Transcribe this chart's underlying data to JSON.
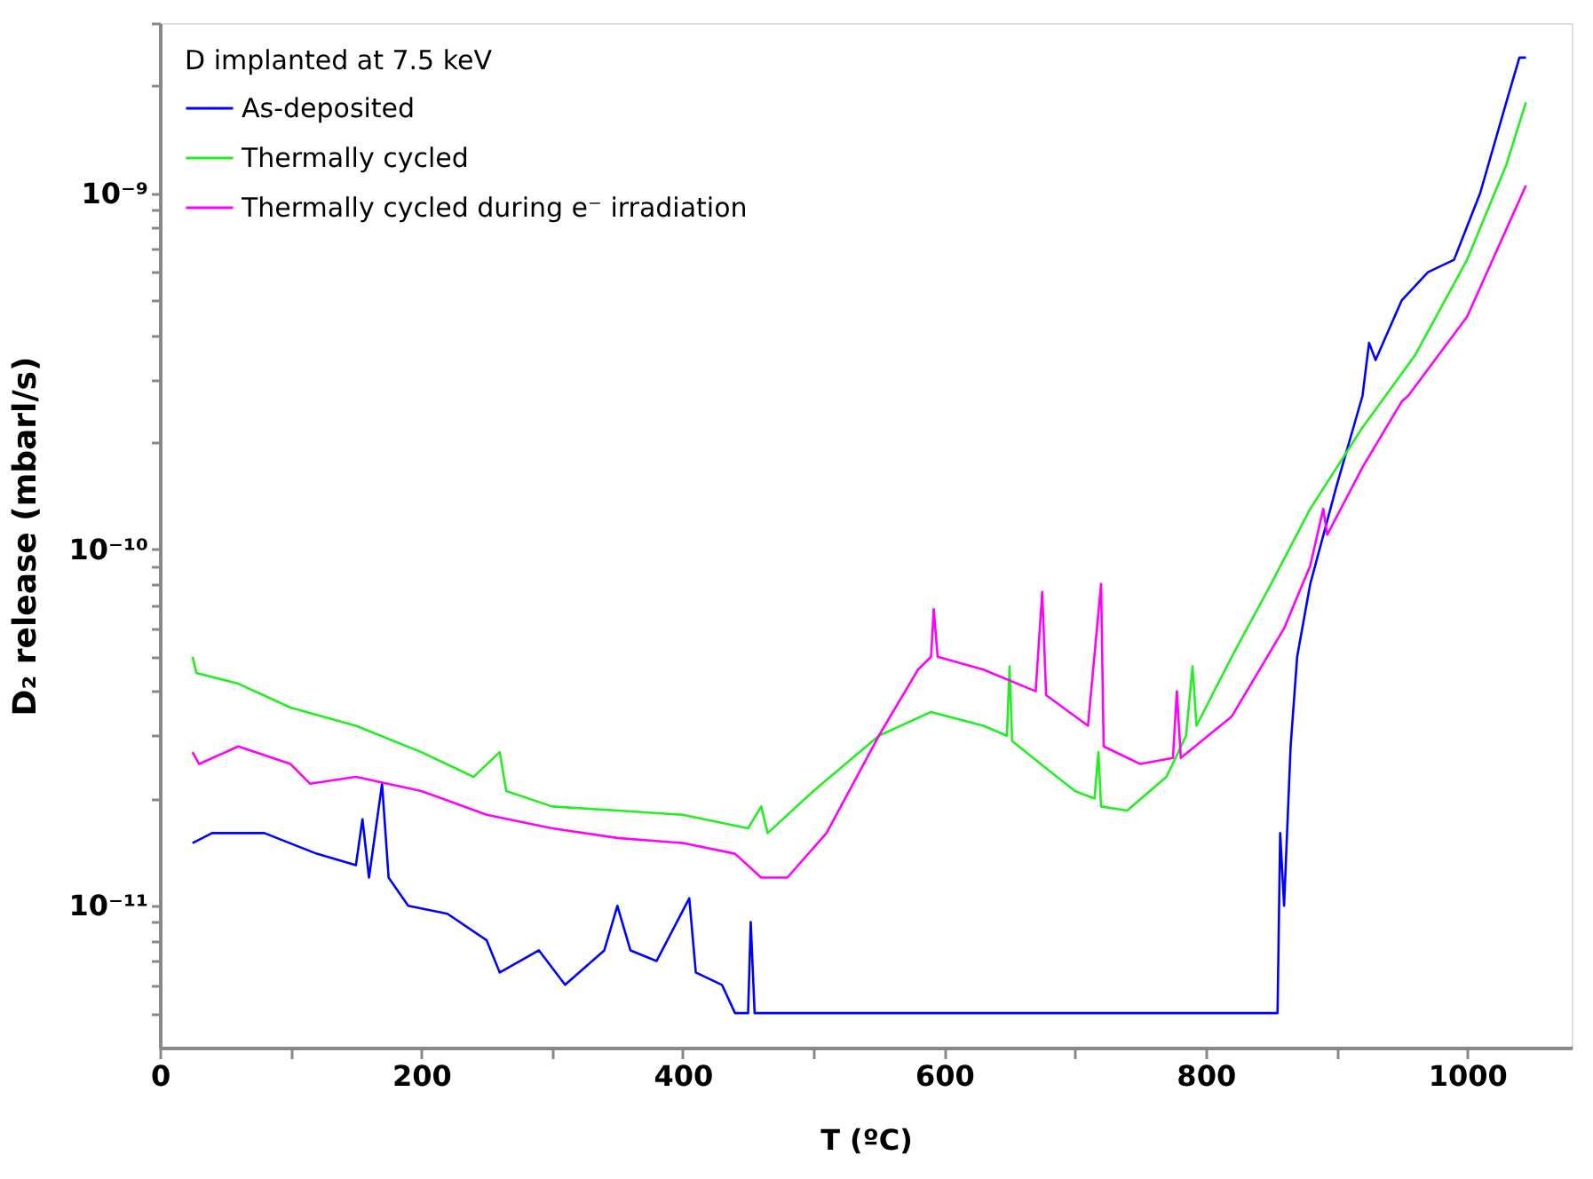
{
  "chart_data": {
    "type": "line",
    "xlabel": "T (ºC)",
    "ylabel": "D₂ release (mbarl/s)",
    "legend_title": "D implanted at 7.5 keV",
    "legend": "top left",
    "log": "y",
    "grid": false,
    "marker": "none",
    "line_style": "solid",
    "xlim": [
      0,
      1080
    ],
    "xticks": [
      0,
      {
        "value": 100,
        "label": null
      },
      200,
      {
        "value": 300,
        "label": null
      },
      400,
      {
        "value": 500,
        "label": null
      },
      600,
      {
        "value": 700,
        "label": null
      },
      800,
      {
        "value": 900,
        "label": null
      },
      1000
    ],
    "ylim": [
      4e-12,
      3e-09
    ],
    "yticks": [
      {
        "value": 5e-12,
        "label": null
      },
      {
        "value": 6e-12,
        "label": null
      },
      {
        "value": 7e-12,
        "label": null
      },
      {
        "value": 8e-12,
        "label": null
      },
      {
        "value": 9e-12,
        "label": null
      },
      {
        "value": 1e-11,
        "label": "10⁻¹¹"
      },
      {
        "value": 2e-11,
        "label": null
      },
      {
        "value": 3e-11,
        "label": null
      },
      {
        "value": 4e-11,
        "label": null
      },
      {
        "value": 5e-11,
        "label": null
      },
      {
        "value": 6e-11,
        "label": null
      },
      {
        "value": 7e-11,
        "label": null
      },
      {
        "value": 8e-11,
        "label": null
      },
      {
        "value": 9e-11,
        "label": null
      },
      {
        "value": 1e-10,
        "label": "10⁻¹⁰"
      },
      {
        "value": 2e-10,
        "label": null
      },
      {
        "value": 3e-10,
        "label": null
      },
      {
        "value": 4e-10,
        "label": null
      },
      {
        "value": 5e-10,
        "label": null
      },
      {
        "value": 6e-10,
        "label": null
      },
      {
        "value": 7e-10,
        "label": null
      },
      {
        "value": 8e-10,
        "label": null
      },
      {
        "value": 9e-10,
        "label": null
      },
      {
        "value": 1e-09,
        "label": "10⁻⁹"
      },
      {
        "value": 2e-09,
        "label": null
      },
      {
        "value": 3e-09,
        "label": null
      }
    ],
    "series": [
      {
        "name": "As-deposited",
        "color": "#0000ff",
        "x": [
          25,
          40,
          80,
          120,
          150,
          155,
          160,
          170,
          175,
          190,
          220,
          250,
          260,
          290,
          310,
          340,
          350,
          360,
          380,
          405,
          410,
          430,
          440,
          450,
          452,
          455,
          855,
          857,
          860,
          865,
          870,
          880,
          900,
          920,
          925,
          930,
          950,
          970,
          990,
          1010,
          1030,
          1040,
          1045
        ],
        "values": [
          1.5e-11,
          1.6e-11,
          1.6e-11,
          1.4e-11,
          1.3e-11,
          1.75e-11,
          1.2e-11,
          2.2e-11,
          1.2e-11,
          1e-11,
          9.5e-12,
          8e-12,
          6.5e-12,
          7.5e-12,
          6e-12,
          7.5e-12,
          1e-11,
          7.5e-12,
          7e-12,
          1.05e-11,
          6.5e-12,
          6e-12,
          5e-12,
          5e-12,
          9e-12,
          5e-12,
          5e-12,
          1.6e-11,
          1e-11,
          2.8e-11,
          5e-11,
          8e-11,
          1.5e-10,
          2.7e-10,
          3.8e-10,
          3.4e-10,
          5e-10,
          6e-10,
          6.5e-10,
          1e-09,
          1.8e-09,
          2.4e-09,
          2.4e-09
        ]
      },
      {
        "name": "Thermally cycled",
        "color": "#22ee22",
        "x": [
          25,
          28,
          60,
          100,
          150,
          200,
          240,
          260,
          265,
          300,
          350,
          400,
          450,
          460,
          465,
          500,
          550,
          590,
          630,
          648,
          650,
          652,
          680,
          700,
          715,
          718,
          720,
          740,
          770,
          785,
          790,
          793,
          820,
          850,
          880,
          920,
          960,
          1000,
          1030,
          1045
        ],
        "values": [
          5e-11,
          4.5e-11,
          4.2e-11,
          3.6e-11,
          3.2e-11,
          2.7e-11,
          2.3e-11,
          2.7e-11,
          2.1e-11,
          1.9e-11,
          1.85e-11,
          1.8e-11,
          1.65e-11,
          1.9e-11,
          1.6e-11,
          2.1e-11,
          3e-11,
          3.5e-11,
          3.2e-11,
          3e-11,
          4.7e-11,
          2.9e-11,
          2.4e-11,
          2.1e-11,
          2e-11,
          2.7e-11,
          1.9e-11,
          1.85e-11,
          2.3e-11,
          3e-11,
          4.7e-11,
          3.2e-11,
          5e-11,
          8e-11,
          1.3e-10,
          2.2e-10,
          3.5e-10,
          6.5e-10,
          1.2e-09,
          1.8e-09
        ]
      },
      {
        "name": "Thermally cycled during e⁻ irradiation",
        "color": "#ff00ff",
        "x": [
          25,
          30,
          60,
          100,
          115,
          150,
          200,
          250,
          300,
          350,
          400,
          440,
          460,
          480,
          510,
          550,
          580,
          590,
          592,
          595,
          630,
          670,
          675,
          678,
          710,
          720,
          722,
          750,
          775,
          778,
          781,
          820,
          860,
          880,
          890,
          893,
          920,
          950,
          955,
          1000,
          1045
        ],
        "values": [
          2.7e-11,
          2.5e-11,
          2.8e-11,
          2.5e-11,
          2.2e-11,
          2.3e-11,
          2.1e-11,
          1.8e-11,
          1.65e-11,
          1.55e-11,
          1.5e-11,
          1.4e-11,
          1.2e-11,
          1.2e-11,
          1.6e-11,
          3e-11,
          4.6e-11,
          5e-11,
          6.8e-11,
          5e-11,
          4.6e-11,
          4e-11,
          7.6e-11,
          3.9e-11,
          3.2e-11,
          8e-11,
          2.8e-11,
          2.5e-11,
          2.6e-11,
          4e-11,
          2.6e-11,
          3.4e-11,
          6e-11,
          9e-11,
          1.3e-10,
          1.1e-10,
          1.7e-10,
          2.6e-10,
          2.7e-10,
          4.5e-10,
          1.05e-09
        ]
      }
    ]
  }
}
